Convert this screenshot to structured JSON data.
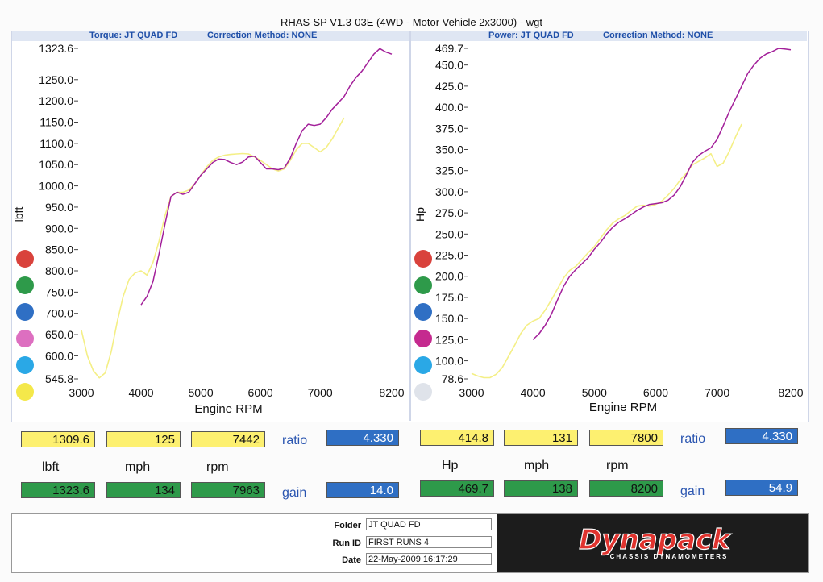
{
  "title": "RHAS-SP V1.3-03E  (4WD - Motor Vehicle 2x3000) - wgt",
  "colors": {
    "yellow_trace": "#f4ef86",
    "magenta_trace": "#a3209a"
  },
  "left_header": {
    "torque": "Torque: JT QUAD FD",
    "correction": "Correction Method: NONE"
  },
  "right_header": {
    "power": "Power: JT QUAD FD",
    "correction": "Correction Method: NONE"
  },
  "legend_dots": [
    "#d9423c",
    "#2e9a4a",
    "#2f6fc4",
    "#dd6fc0",
    "#2aa8e6",
    "#f4e84a"
  ],
  "legend_dots_right": [
    "#d9423c",
    "#2e9a4a",
    "#2f6fc4",
    "#c52a8f",
    "#2aa8e6",
    "#dfe3ea"
  ],
  "chart_data": [
    {
      "type": "line",
      "title": "",
      "xlabel": "Engine RPM",
      "ylabel": "lbft",
      "xlim": [
        3000,
        8200
      ],
      "ylim": [
        545.8,
        1323.6
      ],
      "x_ticks": [
        "3000",
        "4000",
        "5000",
        "6000",
        "7000",
        "8200"
      ],
      "y_ticks": [
        "1323.6",
        "1250.0",
        "1200.0",
        "1150.0",
        "1100.0",
        "1050.0",
        "1000.0",
        "950.0",
        "900.0",
        "850.0",
        "800.0",
        "750.0",
        "700.0",
        "650.0",
        "600.0",
        "545.8"
      ],
      "series": [
        {
          "color": "yellow",
          "x": [
            3000,
            3100,
            3200,
            3300,
            3400,
            3500,
            3600,
            3700,
            3800,
            3900,
            4000,
            4100,
            4200,
            4300,
            4400,
            4500,
            4600,
            4700,
            4800,
            4900,
            5000,
            5100,
            5200,
            5300,
            5400,
            5500,
            5600,
            5700,
            5800,
            5900,
            6000,
            6100,
            6200,
            6300,
            6400,
            6500,
            6600,
            6700,
            6800,
            6900,
            7000,
            7100,
            7200,
            7300,
            7400
          ],
          "y": [
            660,
            600,
            565,
            548,
            560,
            610,
            680,
            740,
            780,
            795,
            800,
            790,
            820,
            870,
            930,
            975,
            985,
            985,
            990,
            1005,
            1025,
            1045,
            1060,
            1068,
            1072,
            1074,
            1075,
            1076,
            1075,
            1068,
            1060,
            1050,
            1040,
            1035,
            1040,
            1060,
            1085,
            1100,
            1100,
            1090,
            1080,
            1090,
            1110,
            1135,
            1160
          ]
        },
        {
          "color": "magenta",
          "x": [
            4000,
            4100,
            4200,
            4300,
            4400,
            4500,
            4600,
            4700,
            4800,
            4900,
            5000,
            5100,
            5200,
            5300,
            5400,
            5500,
            5600,
            5700,
            5800,
            5900,
            6000,
            6100,
            6200,
            6300,
            6400,
            6500,
            6600,
            6700,
            6800,
            6900,
            7000,
            7100,
            7200,
            7300,
            7400,
            7500,
            7600,
            7700,
            7800,
            7900,
            8000,
            8100,
            8200
          ],
          "y": [
            720,
            740,
            775,
            840,
            910,
            975,
            985,
            980,
            985,
            1005,
            1025,
            1040,
            1055,
            1063,
            1062,
            1055,
            1050,
            1056,
            1068,
            1070,
            1055,
            1040,
            1040,
            1038,
            1042,
            1065,
            1100,
            1130,
            1145,
            1142,
            1145,
            1160,
            1180,
            1195,
            1210,
            1235,
            1255,
            1270,
            1290,
            1310,
            1323,
            1315,
            1310
          ]
        }
      ]
    },
    {
      "type": "line",
      "title": "",
      "xlabel": "Engine RPM",
      "ylabel": "Hp",
      "xlim": [
        3000,
        8200
      ],
      "ylim": [
        78.6,
        469.7
      ],
      "x_ticks": [
        "3000",
        "4000",
        "5000",
        "6000",
        "7000",
        "8200"
      ],
      "y_ticks": [
        "469.7",
        "450.0",
        "425.0",
        "400.0",
        "375.0",
        "350.0",
        "325.0",
        "300.0",
        "275.0",
        "250.0",
        "225.0",
        "200.0",
        "175.0",
        "150.0",
        "125.0",
        "100.0",
        "78.6"
      ],
      "series": [
        {
          "color": "yellow",
          "x": [
            3000,
            3100,
            3200,
            3300,
            3400,
            3500,
            3600,
            3700,
            3800,
            3900,
            4000,
            4100,
            4200,
            4300,
            4400,
            4500,
            4600,
            4700,
            4800,
            4900,
            5000,
            5100,
            5200,
            5300,
            5400,
            5500,
            5600,
            5700,
            5800,
            5900,
            6000,
            6100,
            6200,
            6300,
            6400,
            6500,
            6600,
            6700,
            6800,
            6900,
            7000,
            7100,
            7200,
            7300,
            7400
          ],
          "y": [
            85,
            82,
            80,
            80,
            84,
            92,
            105,
            118,
            132,
            142,
            147,
            150,
            160,
            172,
            185,
            198,
            207,
            212,
            220,
            228,
            235,
            245,
            255,
            263,
            268,
            272,
            278,
            283,
            284,
            283,
            285,
            289,
            296,
            304,
            314,
            322,
            332,
            336,
            340,
            345,
            330,
            334,
            348,
            365,
            380
          ]
        },
        {
          "color": "magenta",
          "x": [
            4000,
            4100,
            4200,
            4300,
            4400,
            4500,
            4600,
            4700,
            4800,
            4900,
            5000,
            5100,
            5200,
            5300,
            5400,
            5500,
            5600,
            5700,
            5800,
            5900,
            6000,
            6100,
            6200,
            6300,
            6400,
            6500,
            6600,
            6700,
            6800,
            6900,
            7000,
            7100,
            7200,
            7300,
            7400,
            7500,
            7600,
            7700,
            7800,
            7900,
            8000,
            8100,
            8200
          ],
          "y": [
            125,
            132,
            142,
            155,
            172,
            188,
            200,
            208,
            215,
            222,
            232,
            240,
            250,
            258,
            264,
            268,
            273,
            278,
            282,
            285,
            286,
            287,
            290,
            296,
            306,
            320,
            335,
            343,
            348,
            352,
            362,
            378,
            395,
            410,
            425,
            440,
            450,
            458,
            463,
            466,
            469.7,
            469,
            468
          ]
        }
      ]
    }
  ],
  "left_readout": {
    "top": [
      "1309.6",
      "125",
      "7442"
    ],
    "units": [
      "lbft",
      "mph",
      "rpm"
    ],
    "bottom": [
      "1323.6",
      "134",
      "7963"
    ],
    "ratio_label": "ratio",
    "ratio": "4.330",
    "gain_label": "gain",
    "gain": "14.0"
  },
  "right_readout": {
    "top": [
      "414.8",
      "131",
      "7800"
    ],
    "units": [
      "Hp",
      "mph",
      "rpm"
    ],
    "bottom": [
      "469.7",
      "138",
      "8200"
    ],
    "ratio_label": "ratio",
    "ratio": "4.330",
    "gain_label": "gain",
    "gain": "54.9"
  },
  "info": {
    "folder_label": "Folder",
    "folder": "JT QUAD FD",
    "runid_label": "Run ID",
    "runid": "FIRST RUNS  4",
    "date_label": "Date",
    "date": "22-May-2009  16:17:29"
  },
  "logo": {
    "brand": "Dynapack",
    "tagline": "CHASSIS DYNAMOMETERS"
  }
}
